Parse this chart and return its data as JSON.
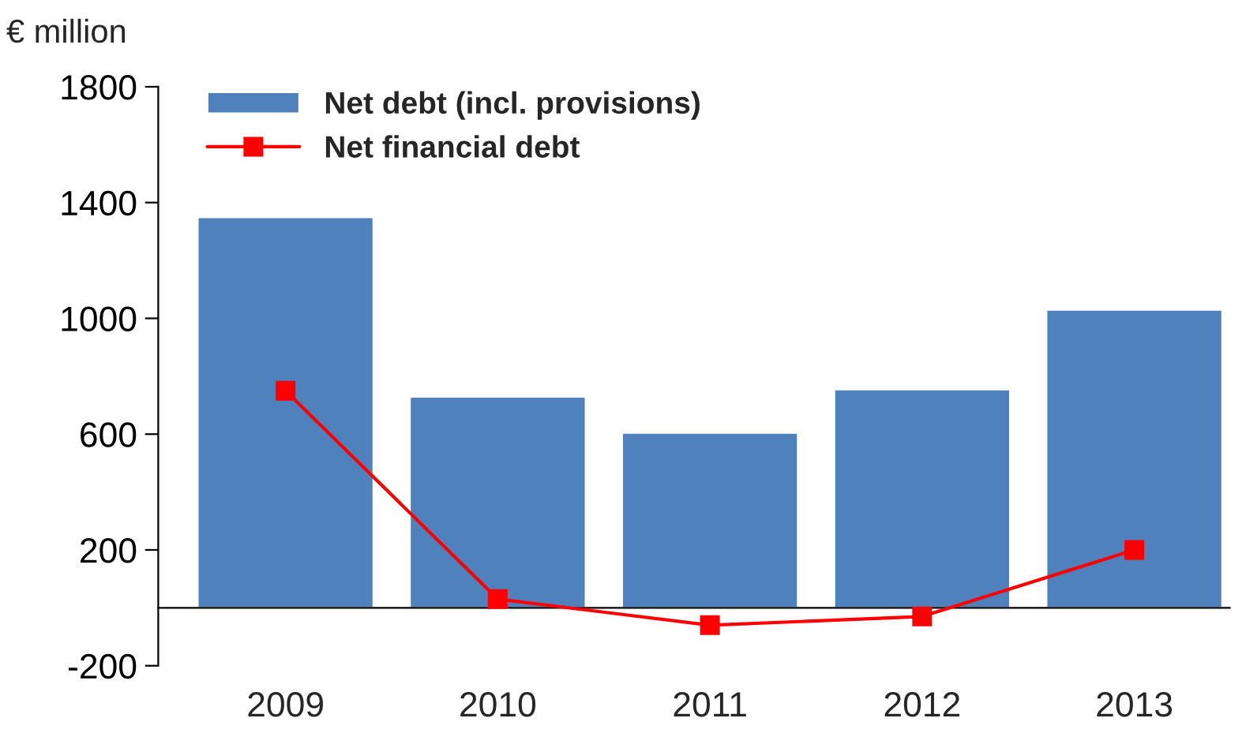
{
  "chart_data": {
    "type": "bar",
    "ylabel": "€ million",
    "categories": [
      "2009",
      "2010",
      "2011",
      "2012",
      "2013"
    ],
    "series": [
      {
        "name": "Net debt (incl. provisions)",
        "color": "#4f81bd",
        "values": [
          1350,
          730,
          605,
          755,
          1030
        ]
      },
      {
        "name": "Net financial debt",
        "type": "line",
        "color": "#ff0000",
        "values": [
          750,
          30,
          -60,
          -30,
          200
        ]
      }
    ],
    "ylim": [
      -200,
      1800
    ],
    "yticks": [
      -200,
      200,
      600,
      1000,
      1400,
      1800
    ],
    "marker": "square",
    "line_style": "solid",
    "grid": false,
    "legend": "top left"
  }
}
